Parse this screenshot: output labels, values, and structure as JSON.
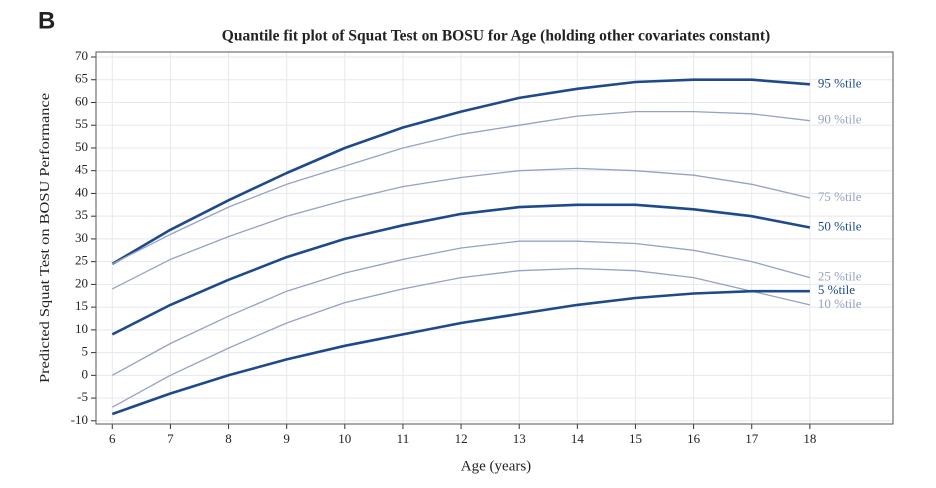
{
  "chart_data": {
    "type": "line",
    "panel_label": "B",
    "title": "Quantile fit plot of Squat Test on BOSU for Age (holding other covariates constant)",
    "xlabel": "Age (years)",
    "ylabel": "Predicted Squat Test on BOSU Performance",
    "x": [
      6,
      7,
      8,
      9,
      10,
      11,
      12,
      13,
      14,
      15,
      16,
      17,
      18
    ],
    "xlim": [
      5.72,
      19.43
    ],
    "xticks": [
      6,
      7,
      8,
      9,
      10,
      11,
      12,
      13,
      14,
      15,
      16,
      17,
      18
    ],
    "ylim": [
      -10.7,
      71.1
    ],
    "yticks": [
      -10,
      -5,
      0,
      5,
      10,
      15,
      20,
      25,
      30,
      35,
      40,
      45,
      50,
      55,
      60,
      65,
      70
    ],
    "grid": true,
    "series": [
      {
        "name": "95 %tile",
        "color": "#1f4a8a",
        "linewidth": 2.6,
        "values": [
          24.5,
          32,
          38.5,
          44.5,
          50,
          54.5,
          58,
          61,
          63,
          64.5,
          65,
          65,
          64
        ]
      },
      {
        "name": "90 %tile",
        "color": "#95a2c2",
        "linewidth": 1.3,
        "values": [
          24.5,
          31,
          37,
          42,
          46,
          50,
          53,
          55,
          57,
          58,
          58,
          57.5,
          56
        ]
      },
      {
        "name": "75 %tile",
        "color": "#95a2c2",
        "linewidth": 1.3,
        "values": [
          19,
          25.5,
          30.5,
          35,
          38.5,
          41.5,
          43.5,
          45,
          45.5,
          45,
          44,
          42,
          39
        ]
      },
      {
        "name": "50 %tile",
        "color": "#1f4a8a",
        "linewidth": 2.6,
        "values": [
          9,
          15.5,
          21,
          26,
          30,
          33,
          35.5,
          37,
          37.5,
          37.5,
          36.5,
          35,
          32.5
        ]
      },
      {
        "name": "25 %tile",
        "color": "#95a2c2",
        "linewidth": 1.3,
        "values": [
          0,
          7,
          13,
          18.5,
          22.5,
          25.5,
          28,
          29.5,
          29.5,
          29,
          27.5,
          25,
          21.5
        ]
      },
      {
        "name": "10 %tile",
        "color": "#95a2c2",
        "linewidth": 1.3,
        "values": [
          -7,
          0,
          6,
          11.5,
          16,
          19,
          21.5,
          23,
          23.5,
          23,
          21.5,
          18.5,
          15.5
        ]
      },
      {
        "name": "5 %tile",
        "color": "#1f4a8a",
        "linewidth": 2.6,
        "values": [
          -8.5,
          -4,
          0,
          3.5,
          6.5,
          9,
          11.5,
          13.5,
          15.5,
          17,
          18,
          18.5,
          18.5
        ]
      }
    ]
  }
}
